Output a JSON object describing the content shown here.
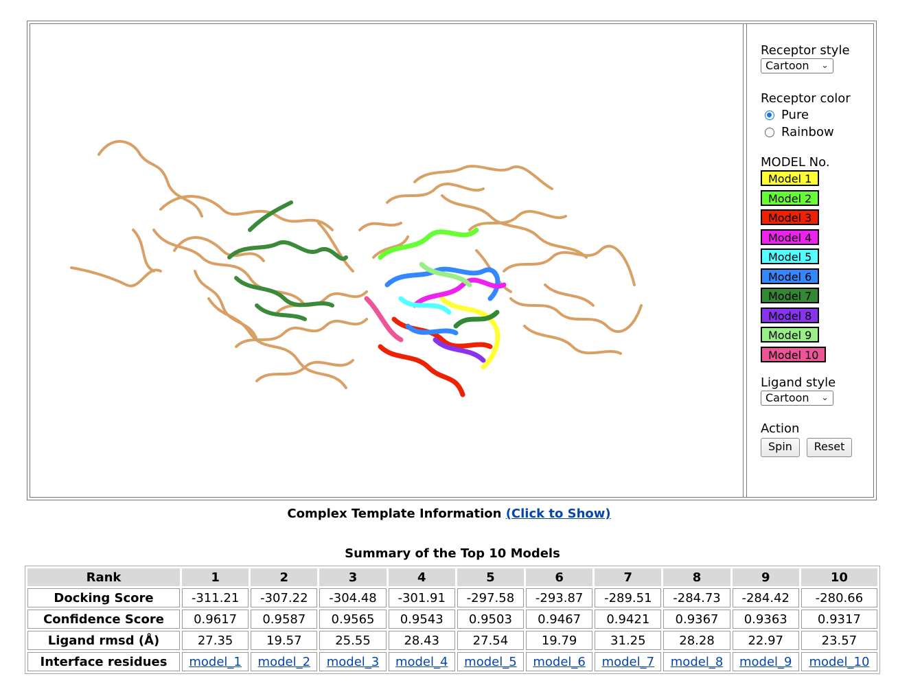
{
  "panel": {
    "receptor_style_label": "Receptor style",
    "receptor_style_value": "Cartoon",
    "receptor_color_label": "Receptor color",
    "receptor_color_options": [
      {
        "label": "Pure",
        "selected": true
      },
      {
        "label": "Rainbow",
        "selected": false
      }
    ],
    "model_no_label": "MODEL No.",
    "models": [
      {
        "label": "Model 1",
        "color": "#ffff33"
      },
      {
        "label": "Model 2",
        "color": "#66ff33"
      },
      {
        "label": "Model 3",
        "color": "#ee2200"
      },
      {
        "label": "Model 4",
        "color": "#ee22ee"
      },
      {
        "label": "Model 5",
        "color": "#55ffff"
      },
      {
        "label": "Model 6",
        "color": "#3388ff"
      },
      {
        "label": "Model 7",
        "color": "#338833"
      },
      {
        "label": "Model 8",
        "color": "#8833ee"
      },
      {
        "label": "Model 9",
        "color": "#99ee88"
      },
      {
        "label": "Model 10",
        "color": "#ee5599"
      }
    ],
    "ligand_style_label": "Ligand style",
    "ligand_style_value": "Cartoon",
    "action_label": "Action",
    "spin_label": "Spin",
    "reset_label": "Reset"
  },
  "info": {
    "text": "Complex Template Information ",
    "link": "(Click to Show)"
  },
  "table": {
    "title": "Summary of the Top 10 Models",
    "header": [
      "Rank",
      "1",
      "2",
      "3",
      "4",
      "5",
      "6",
      "7",
      "8",
      "9",
      "10"
    ],
    "rows": [
      {
        "label": "Docking Score",
        "values": [
          "-311.21",
          "-307.22",
          "-304.48",
          "-301.91",
          "-297.58",
          "-293.87",
          "-289.51",
          "-284.73",
          "-284.42",
          "-280.66"
        ]
      },
      {
        "label": "Confidence Score",
        "values": [
          "0.9617",
          "0.9587",
          "0.9565",
          "0.9543",
          "0.9503",
          "0.9467",
          "0.9421",
          "0.9367",
          "0.9363",
          "0.9317"
        ]
      },
      {
        "label": "Ligand rmsd (Å)",
        "values": [
          "27.35",
          "19.57",
          "25.55",
          "28.43",
          "27.54",
          "19.79",
          "31.25",
          "28.28",
          "22.97",
          "23.57"
        ]
      }
    ],
    "links_label": "Interface residues",
    "links": [
      "model_1",
      "model_2",
      "model_3",
      "model_4",
      "model_5",
      "model_6",
      "model_7",
      "model_8",
      "model_9",
      "model_10"
    ]
  }
}
